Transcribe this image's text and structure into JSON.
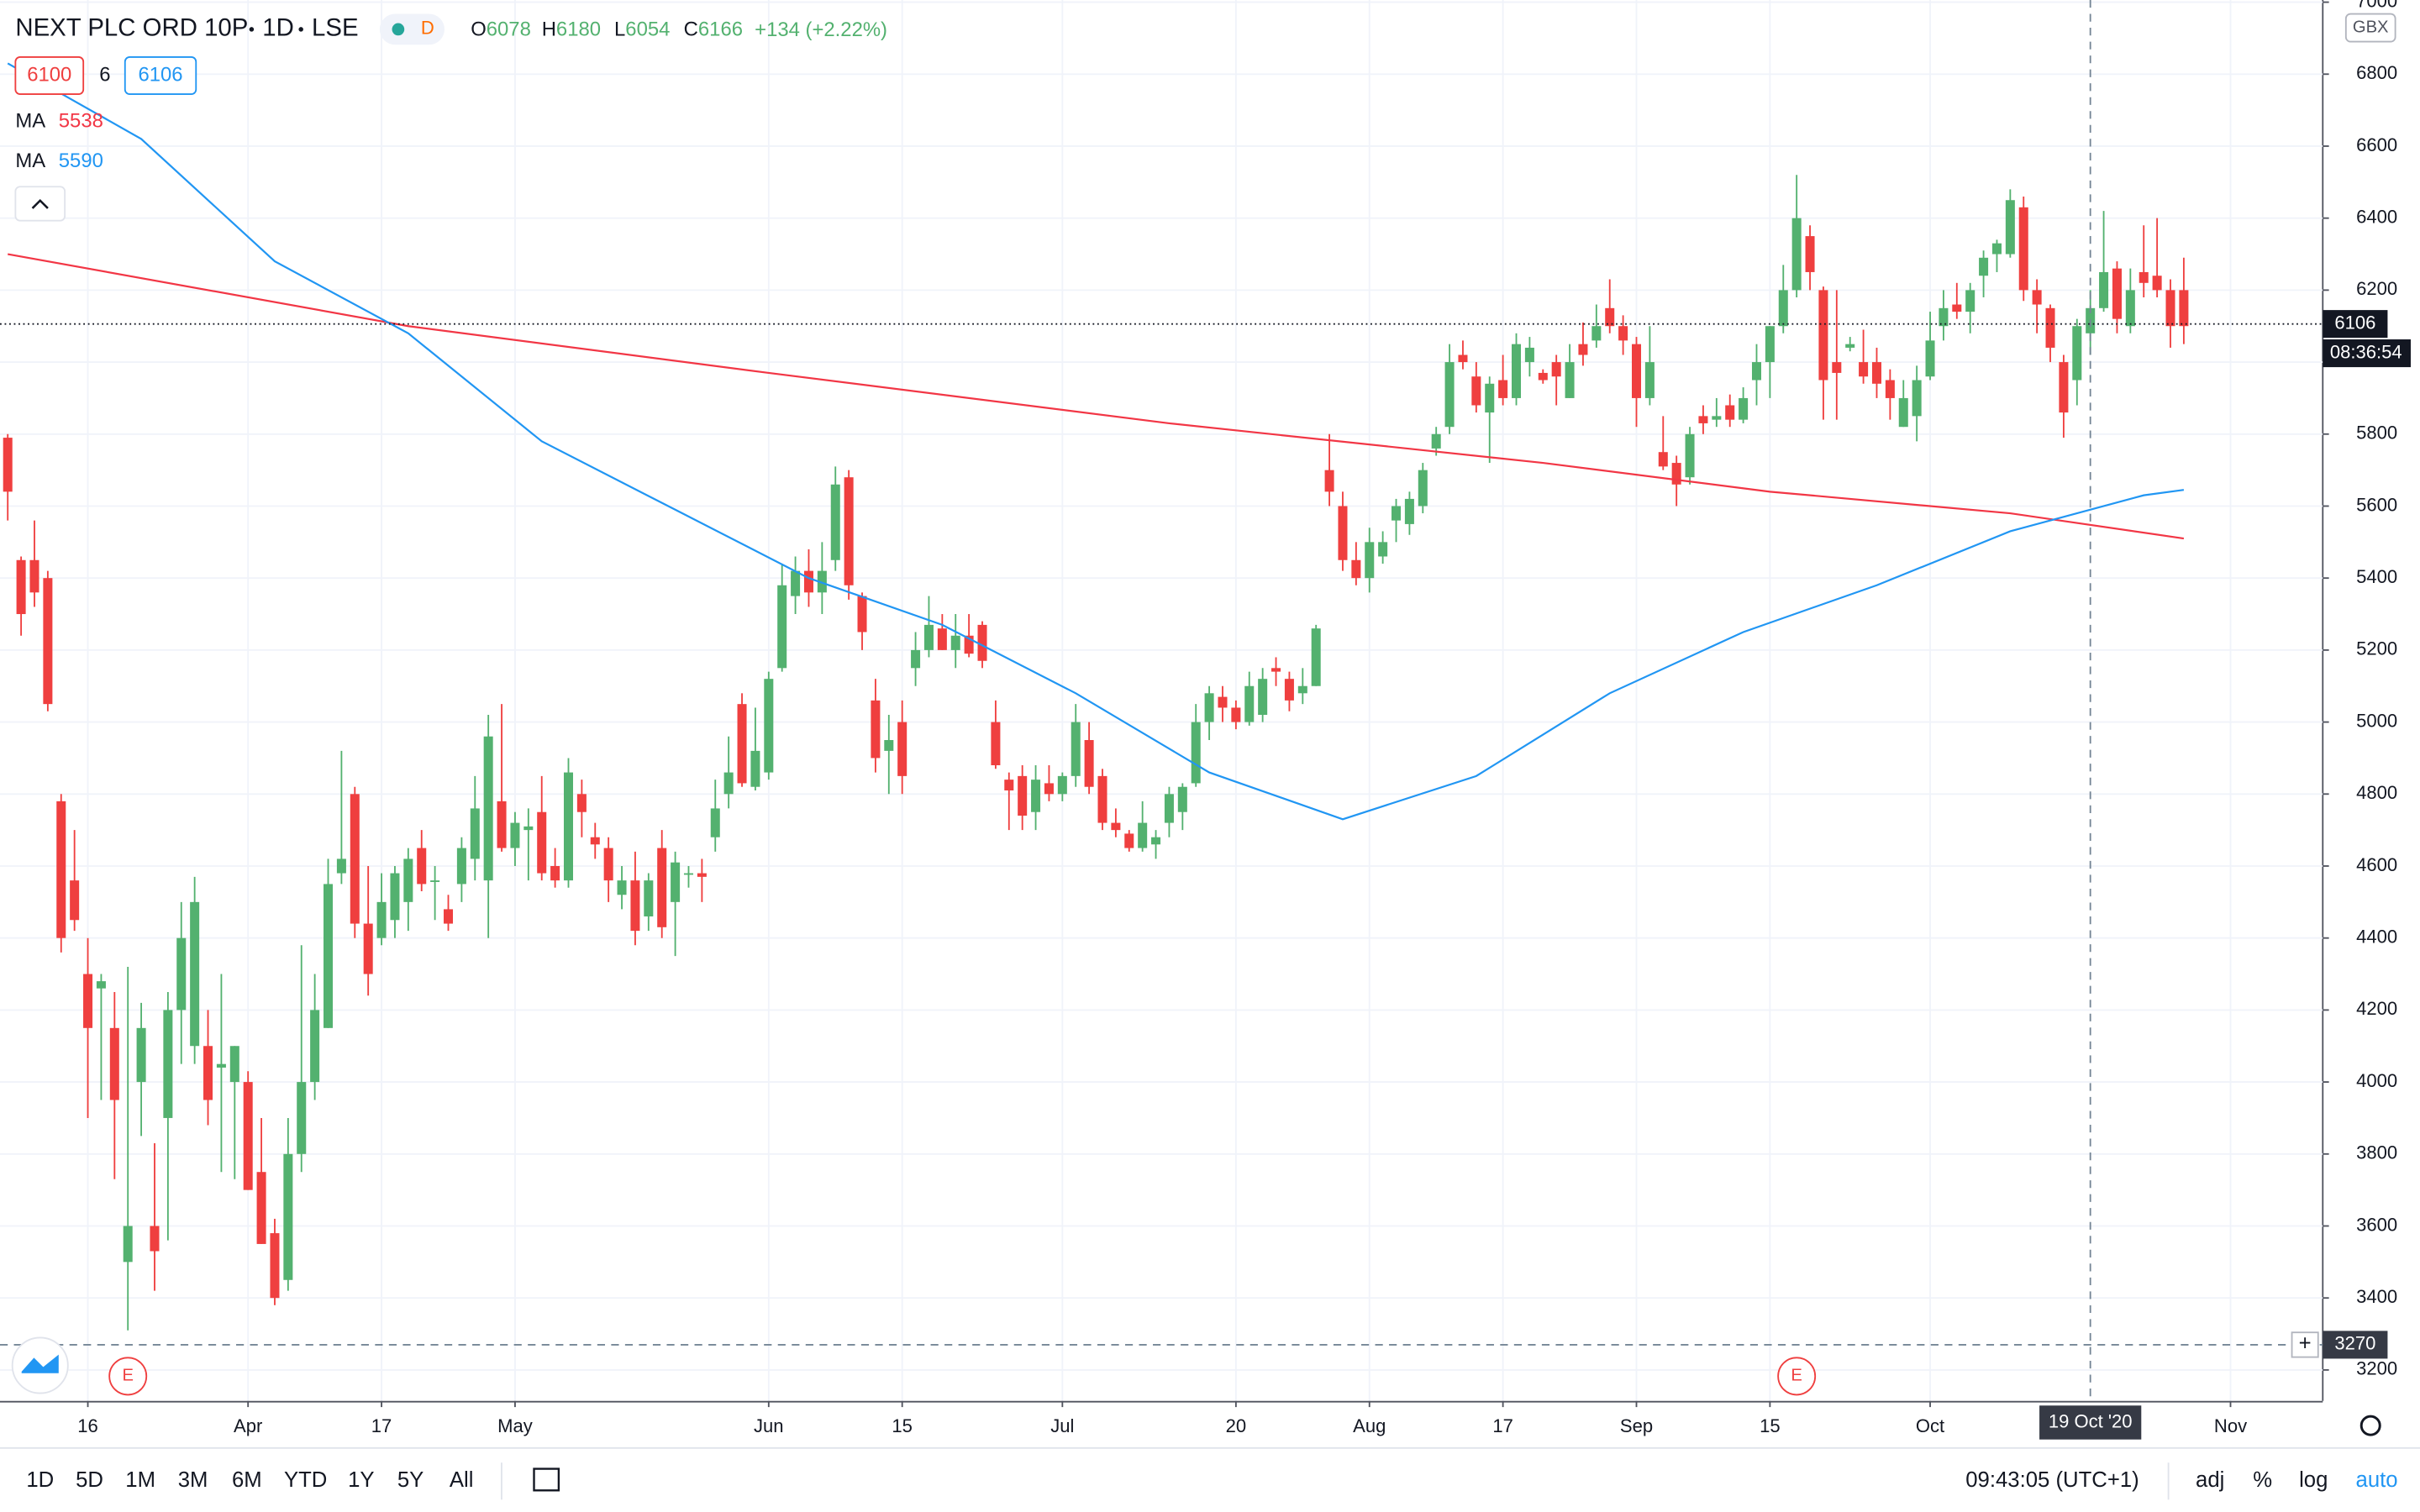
{
  "chart_data": {
    "type": "candlestick",
    "header": {
      "symbol": "NEXT PLC ORD 10P",
      "interval": "1D",
      "exchange": "LSE",
      "flag": "D",
      "open": "O6078",
      "high": "H6180",
      "low": "L6054",
      "close": "C6166",
      "change": "+134 (+2.22%)"
    },
    "bid": "6100",
    "spread": "6",
    "ask": "6106",
    "currency": "GBX",
    "ma": [
      {
        "name": "MA",
        "label": "5538",
        "color": "#f23645",
        "x": [
          0,
          30,
          57,
          87,
          115,
          132,
          150,
          163
        ],
        "values": [
          6300,
          6100,
          5970,
          5830,
          5720,
          5640,
          5580,
          5510
        ]
      },
      {
        "name": "MA",
        "label": "5590",
        "color": "#2196f3",
        "x": [
          0,
          10,
          20,
          30,
          40,
          50,
          60,
          70,
          80,
          90,
          100,
          110,
          120,
          130,
          140,
          150,
          160,
          163
        ],
        "values": [
          6830,
          6620,
          6280,
          6080,
          5780,
          5590,
          5400,
          5270,
          5080,
          4860,
          4730,
          4850,
          5080,
          5250,
          5380,
          5530,
          5630,
          5645
        ]
      }
    ],
    "up_color": "#53b16f",
    "down_color": "#ef3f3f",
    "ylim": [
      3114,
      7006
    ],
    "yticks": [
      3200,
      3400,
      3600,
      3800,
      4000,
      4200,
      4400,
      4600,
      4800,
      5000,
      5200,
      5400,
      5600,
      5800,
      6000,
      6200,
      6400,
      6600,
      6800,
      7000
    ],
    "xlim": [
      -0.58,
      173.41
    ],
    "xticks": [
      {
        "value": 6,
        "label": "16"
      },
      {
        "value": 18,
        "label": "Apr"
      },
      {
        "value": 28,
        "label": "17"
      },
      {
        "value": 38,
        "label": "May"
      },
      {
        "value": 57,
        "label": "Jun"
      },
      {
        "value": 67,
        "label": "15"
      },
      {
        "value": 79,
        "label": "Jul"
      },
      {
        "value": 92,
        "label": "20"
      },
      {
        "value": 102,
        "label": "Aug"
      },
      {
        "value": 112,
        "label": "17"
      },
      {
        "value": 122,
        "label": "Sep"
      },
      {
        "value": 132,
        "label": "15"
      },
      {
        "value": 144,
        "label": "Oct"
      },
      {
        "value": 166.5,
        "label": "Nov"
      }
    ],
    "grid": true,
    "last_price": 6106,
    "countdown": "08:36:54",
    "crosshair": {
      "x": 156,
      "y": 3270,
      "x_label": "19 Oct '20"
    },
    "events": [
      {
        "x": 9,
        "label": "E"
      },
      {
        "x": 134,
        "label": "E"
      }
    ],
    "ohlc": [
      [
        5790,
        5800,
        5560,
        5640
      ],
      [
        5450,
        5460,
        5240,
        5300
      ],
      [
        5450,
        5560,
        5320,
        5360
      ],
      [
        5400,
        5420,
        5030,
        5050
      ],
      [
        4780,
        4800,
        4360,
        4400
      ],
      [
        4560,
        4700,
        4420,
        4450
      ],
      [
        4300,
        4400,
        3900,
        4150
      ],
      [
        4260,
        4300,
        3950,
        4280
      ],
      [
        4150,
        4250,
        3730,
        3950
      ],
      [
        3500,
        4320,
        3310,
        3600
      ],
      [
        4000,
        4220,
        3850,
        4150
      ],
      [
        3600,
        3830,
        3420,
        3530
      ],
      [
        3900,
        4250,
        3560,
        4200
      ],
      [
        4200,
        4500,
        4050,
        4400
      ],
      [
        4100,
        4570,
        4050,
        4500
      ],
      [
        4100,
        4200,
        3880,
        3950
      ],
      [
        4040,
        4300,
        3750,
        4050
      ],
      [
        4000,
        4100,
        3730,
        4100
      ],
      [
        4000,
        4030,
        3700,
        3700
      ],
      [
        3750,
        3900,
        3550,
        3550
      ],
      [
        3580,
        3620,
        3380,
        3400
      ],
      [
        3450,
        3900,
        3420,
        3800
      ],
      [
        3800,
        4380,
        3750,
        4000
      ],
      [
        4000,
        4300,
        3950,
        4200
      ],
      [
        4150,
        4620,
        4150,
        4550
      ],
      [
        4580,
        4920,
        4550,
        4620
      ],
      [
        4800,
        4820,
        4400,
        4440
      ],
      [
        4440,
        4600,
        4240,
        4300
      ],
      [
        4400,
        4580,
        4380,
        4500
      ],
      [
        4450,
        4600,
        4400,
        4580
      ],
      [
        4500,
        4650,
        4420,
        4620
      ],
      [
        4650,
        4700,
        4530,
        4550
      ],
      [
        4560,
        4600,
        4450,
        4560
      ],
      [
        4480,
        4520,
        4420,
        4440
      ],
      [
        4550,
        4680,
        4500,
        4650
      ],
      [
        4620,
        4850,
        4560,
        4760
      ],
      [
        4560,
        5020,
        4400,
        4960
      ],
      [
        4780,
        5050,
        4640,
        4650
      ],
      [
        4650,
        4750,
        4600,
        4720
      ],
      [
        4700,
        4760,
        4560,
        4710
      ],
      [
        4750,
        4850,
        4560,
        4580
      ],
      [
        4600,
        4650,
        4540,
        4560
      ],
      [
        4560,
        4900,
        4540,
        4860
      ],
      [
        4800,
        4840,
        4680,
        4750
      ],
      [
        4680,
        4720,
        4620,
        4660
      ],
      [
        4650,
        4680,
        4500,
        4560
      ],
      [
        4520,
        4600,
        4480,
        4560
      ],
      [
        4560,
        4640,
        4380,
        4420
      ],
      [
        4460,
        4580,
        4420,
        4560
      ],
      [
        4650,
        4700,
        4400,
        4430
      ],
      [
        4500,
        4640,
        4350,
        4610
      ],
      [
        4580,
        4600,
        4540,
        4580
      ],
      [
        4580,
        4620,
        4500,
        4570
      ],
      [
        4680,
        4840,
        4640,
        4760
      ],
      [
        4800,
        4960,
        4760,
        4860
      ],
      [
        5050,
        5080,
        4820,
        4830
      ],
      [
        4820,
        5040,
        4810,
        4920
      ],
      [
        4860,
        5140,
        4840,
        5120
      ],
      [
        5150,
        5440,
        5140,
        5380
      ],
      [
        5350,
        5460,
        5300,
        5420
      ],
      [
        5420,
        5480,
        5320,
        5360
      ],
      [
        5360,
        5500,
        5300,
        5420
      ],
      [
        5450,
        5710,
        5420,
        5660
      ],
      [
        5680,
        5700,
        5340,
        5380
      ],
      [
        5350,
        5360,
        5200,
        5250
      ],
      [
        5060,
        5120,
        4860,
        4900
      ],
      [
        4920,
        5020,
        4800,
        4950
      ],
      [
        5000,
        5060,
        4800,
        4850
      ],
      [
        5150,
        5250,
        5100,
        5200
      ],
      [
        5200,
        5350,
        5180,
        5270
      ],
      [
        5260,
        5300,
        5200,
        5200
      ],
      [
        5200,
        5300,
        5150,
        5240
      ],
      [
        5240,
        5300,
        5180,
        5190
      ],
      [
        5270,
        5280,
        5150,
        5170
      ],
      [
        5000,
        5060,
        4870,
        4880
      ],
      [
        4840,
        4860,
        4700,
        4810
      ],
      [
        4850,
        4880,
        4700,
        4740
      ],
      [
        4750,
        4880,
        4700,
        4840
      ],
      [
        4830,
        4880,
        4780,
        4800
      ],
      [
        4800,
        4860,
        4780,
        4850
      ],
      [
        4850,
        5050,
        4820,
        5000
      ],
      [
        4950,
        5000,
        4800,
        4820
      ],
      [
        4850,
        4870,
        4700,
        4720
      ],
      [
        4720,
        4760,
        4680,
        4700
      ],
      [
        4690,
        4700,
        4640,
        4650
      ],
      [
        4650,
        4780,
        4640,
        4720
      ],
      [
        4660,
        4700,
        4620,
        4680
      ],
      [
        4720,
        4820,
        4680,
        4800
      ],
      [
        4750,
        4830,
        4700,
        4820
      ],
      [
        4830,
        5050,
        4820,
        5000
      ],
      [
        5000,
        5100,
        4950,
        5080
      ],
      [
        5070,
        5100,
        5000,
        5040
      ],
      [
        5040,
        5060,
        4980,
        5000
      ],
      [
        5000,
        5140,
        4990,
        5100
      ],
      [
        5020,
        5150,
        5000,
        5120
      ],
      [
        5150,
        5180,
        5100,
        5140
      ],
      [
        5120,
        5140,
        5030,
        5060
      ],
      [
        5080,
        5150,
        5050,
        5100
      ],
      [
        5100,
        5270,
        5100,
        5260
      ],
      [
        5700,
        5800,
        5600,
        5640
      ],
      [
        5600,
        5640,
        5420,
        5450
      ],
      [
        5450,
        5500,
        5380,
        5400
      ],
      [
        5400,
        5540,
        5360,
        5500
      ],
      [
        5460,
        5530,
        5440,
        5500
      ],
      [
        5560,
        5620,
        5500,
        5600
      ],
      [
        5550,
        5640,
        5520,
        5620
      ],
      [
        5600,
        5720,
        5580,
        5700
      ],
      [
        5760,
        5820,
        5740,
        5800
      ],
      [
        5820,
        6050,
        5800,
        6000
      ],
      [
        6020,
        6060,
        5980,
        6000
      ],
      [
        5960,
        6000,
        5860,
        5880
      ],
      [
        5860,
        5960,
        5720,
        5940
      ],
      [
        5950,
        6020,
        5880,
        5900
      ],
      [
        5900,
        6080,
        5880,
        6050
      ],
      [
        6000,
        6070,
        5960,
        6040
      ],
      [
        5970,
        5980,
        5940,
        5950
      ],
      [
        6000,
        6020,
        5880,
        5960
      ],
      [
        5900,
        6050,
        5900,
        6000
      ],
      [
        6050,
        6110,
        5990,
        6020
      ],
      [
        6060,
        6160,
        6040,
        6100
      ],
      [
        6150,
        6230,
        6080,
        6100
      ],
      [
        6100,
        6130,
        6020,
        6060
      ],
      [
        6050,
        6070,
        5820,
        5900
      ],
      [
        5900,
        6100,
        5880,
        6000
      ],
      [
        5750,
        5850,
        5700,
        5710
      ],
      [
        5720,
        5740,
        5600,
        5660
      ],
      [
        5680,
        5820,
        5660,
        5800
      ],
      [
        5850,
        5880,
        5800,
        5830
      ],
      [
        5840,
        5900,
        5820,
        5850
      ],
      [
        5880,
        5910,
        5820,
        5840
      ],
      [
        5840,
        5930,
        5830,
        5900
      ],
      [
        5950,
        6050,
        5880,
        6000
      ],
      [
        6000,
        6100,
        5900,
        6100
      ],
      [
        6100,
        6270,
        6080,
        6200
      ],
      [
        6200,
        6520,
        6180,
        6400
      ],
      [
        6350,
        6380,
        6200,
        6250
      ],
      [
        6200,
        6210,
        5840,
        5950
      ],
      [
        6000,
        6200,
        5840,
        5970
      ],
      [
        6040,
        6070,
        6030,
        6050
      ],
      [
        6000,
        6090,
        5940,
        5960
      ],
      [
        6000,
        6040,
        5900,
        5940
      ],
      [
        5950,
        5980,
        5840,
        5900
      ],
      [
        5820,
        5950,
        5820,
        5900
      ],
      [
        5850,
        5990,
        5780,
        5950
      ],
      [
        5960,
        6140,
        5950,
        6060
      ],
      [
        6100,
        6200,
        6060,
        6150
      ],
      [
        6160,
        6220,
        6120,
        6140
      ],
      [
        6140,
        6220,
        6080,
        6200
      ],
      [
        6240,
        6310,
        6180,
        6290
      ],
      [
        6300,
        6340,
        6250,
        6330
      ],
      [
        6300,
        6480,
        6290,
        6450
      ],
      [
        6430,
        6460,
        6170,
        6200
      ],
      [
        6200,
        6230,
        6080,
        6160
      ],
      [
        6150,
        6160,
        6000,
        6040
      ],
      [
        6000,
        6020,
        5790,
        5860
      ],
      [
        5950,
        6120,
        5880,
        6100
      ],
      [
        6080,
        6200,
        6020,
        6150
      ],
      [
        6150,
        6420,
        6140,
        6250
      ],
      [
        6260,
        6280,
        6080,
        6120
      ],
      [
        6100,
        6260,
        6080,
        6200
      ],
      [
        6250,
        6380,
        6180,
        6220
      ],
      [
        6240,
        6400,
        6180,
        6200
      ],
      [
        6200,
        6230,
        6040,
        6100
      ],
      [
        6200,
        6290,
        6050,
        6100
      ]
    ],
    "toolbar": {
      "ranges": [
        "1D",
        "5D",
        "1M",
        "3M",
        "6M",
        "YTD",
        "1Y",
        "5Y",
        "All"
      ],
      "clock": "09:43:05 (UTC+1)",
      "options": [
        "adj",
        "%",
        "log",
        "auto"
      ]
    }
  }
}
